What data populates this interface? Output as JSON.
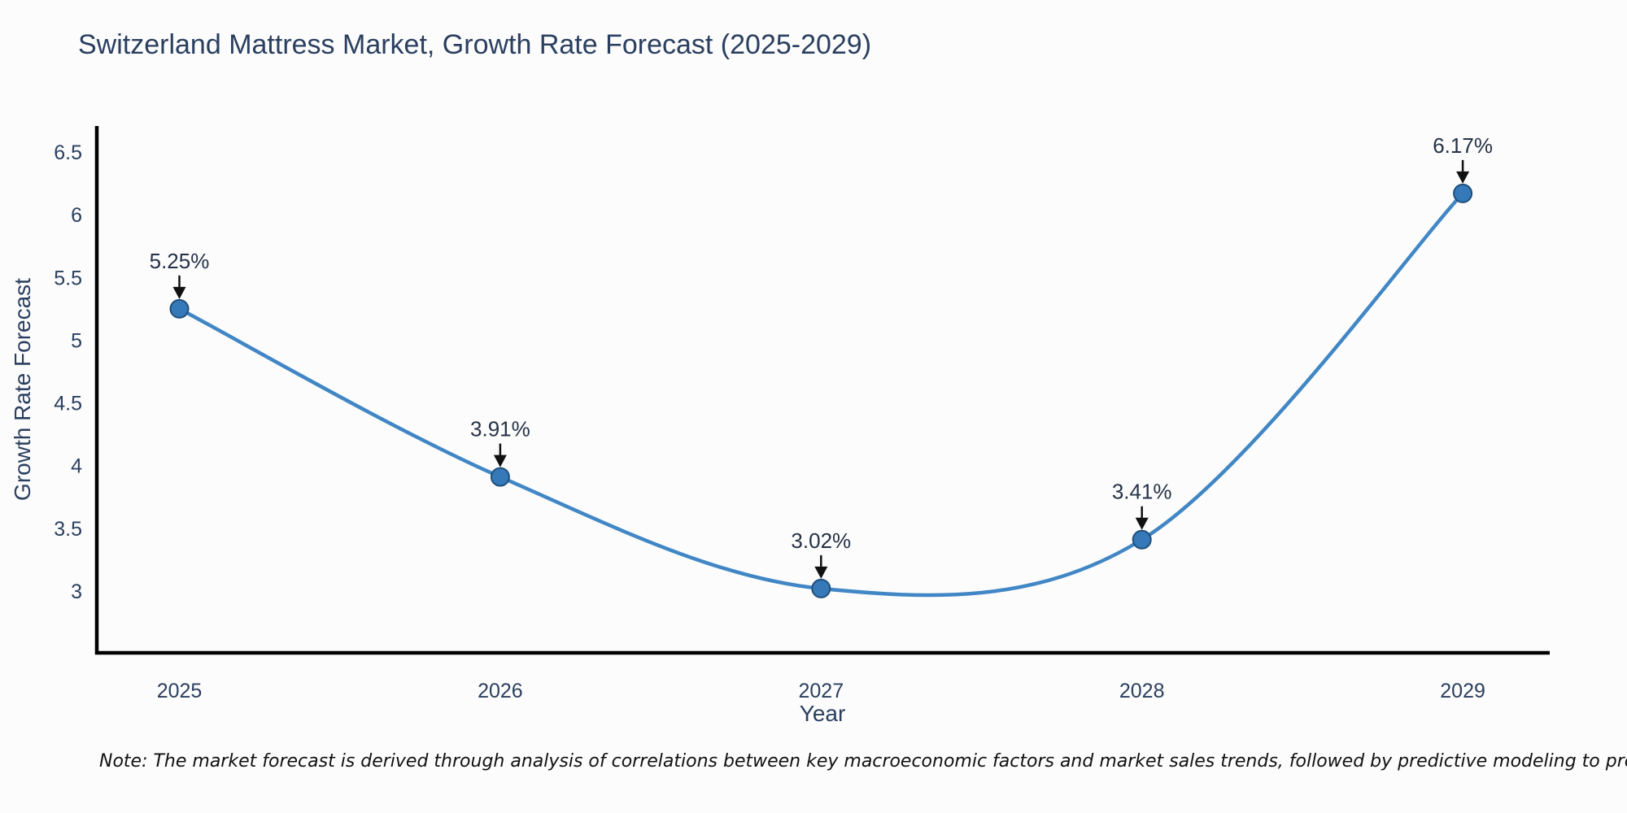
{
  "chart_data": {
    "type": "line",
    "title": "Switzerland Mattress Market, Growth Rate Forecast (2025-2029)",
    "xlabel": "Year",
    "ylabel": "Growth Rate Forecast",
    "x": [
      2025,
      2026,
      2027,
      2028,
      2029
    ],
    "y": [
      5.25,
      3.91,
      3.02,
      3.41,
      6.17
    ],
    "point_labels": [
      "5.25%",
      "3.91%",
      "3.02%",
      "3.41%",
      "6.17%"
    ],
    "x_tick_labels": [
      "2025",
      "2026",
      "2027",
      "2028",
      "2029"
    ],
    "y_ticks": [
      3,
      3.5,
      4,
      4.5,
      5,
      5.5,
      6,
      6.5
    ],
    "ylim": [
      2.51,
      6.71
    ],
    "line_shape": "spline",
    "grid": false,
    "legend": "none",
    "colors": {
      "line": "#4186c5",
      "marker_fill": "#3679b8",
      "marker_edge": "#1f4f7a",
      "axis": "#000000",
      "tick_text": "#2a3f5f",
      "annotation_text": "#253246",
      "annotation_arrow": "#111111",
      "background": "#fcfcfc"
    }
  },
  "note": {
    "text": "Note: The market forecast is derived through analysis of correlations between key macroeconomic factors and market sales trends, followed by predictive modeling to project future sales"
  }
}
